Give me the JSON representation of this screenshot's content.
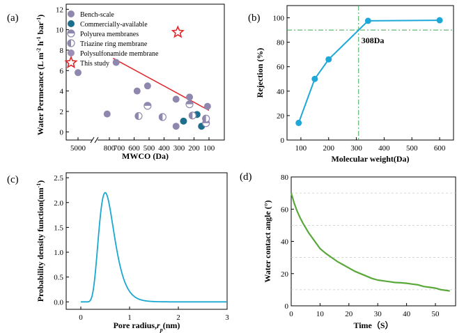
{
  "chart_data": [
    {
      "id": "a",
      "type": "scatter",
      "panel_label": "(a)",
      "xlabel": "MWCO  (Da)",
      "ylabel": "Water Permeance (L m⁻² h⁻¹ bar⁻¹)",
      "ylabel_parts": [
        "Water Permeance (L m",
        "-2",
        " h",
        "-1",
        " bar",
        "-1",
        ")"
      ],
      "x_axis": "reversed, broken between 5000 and 800",
      "xticks": [
        "5000",
        "800",
        "700",
        "600",
        "500",
        "400",
        "300",
        "200",
        "100"
      ],
      "ylim": [
        -0.8,
        12.5
      ],
      "yticks": [
        "0",
        "2",
        "4",
        "6",
        "8",
        "10",
        "12"
      ],
      "legend": [
        {
          "label": "Bench-scale",
          "marker": "circle",
          "color": "#8f87ad"
        },
        {
          "label": "Commercially-available",
          "marker": "circle",
          "color": "#1c6e8c"
        },
        {
          "label": "Polyurea membranes",
          "marker": "half-top",
          "color": "#8f87ad"
        },
        {
          "label": "Triazine ring membrane",
          "marker": "half-left",
          "color": "#8f87ad"
        },
        {
          "label": "Polysulfonamide membrane",
          "marker": "circle",
          "color": "#9b8fb5"
        },
        {
          "label": "This study",
          "marker": "star",
          "color": "#e0262a"
        }
      ],
      "series": [
        {
          "name": "Bench-scale",
          "points": [
            [
              5000,
              5.8
            ],
            [
              780,
              1.75
            ],
            [
              720,
              6.8
            ],
            [
              580,
              4.0
            ],
            [
              510,
              4.5
            ],
            [
              320,
              3.2
            ],
            [
              230,
              3.4
            ],
            [
              320,
              0.55
            ],
            [
              110,
              2.5
            ]
          ]
        },
        {
          "name": "Commercially-available",
          "points": [
            [
              270,
              1.05
            ],
            [
              180,
              1.7
            ],
            [
              150,
              0.55
            ]
          ]
        },
        {
          "name": "Polyurea membranes",
          "points": [
            [
              510,
              2.55
            ],
            [
              230,
              2.7
            ],
            [
              120,
              0.85
            ]
          ]
        },
        {
          "name": "Triazine ring membrane",
          "points": [
            [
              570,
              1.55
            ],
            [
              410,
              1.45
            ],
            [
              210,
              1.6
            ],
            [
              120,
              1.3
            ]
          ]
        },
        {
          "name": "This study",
          "points": [
            [
              308,
              9.75
            ]
          ]
        }
      ],
      "trendline": {
        "x": [
          740,
          100
        ],
        "y": [
          7.2,
          2.1
        ],
        "color": "#e0262a"
      }
    },
    {
      "id": "b",
      "type": "line",
      "panel_label": "(b)",
      "xlabel": "Molecular weight(Da)",
      "ylabel": "Rejection (%)",
      "x": [
        92,
        150,
        200,
        342,
        600
      ],
      "y": [
        14,
        50,
        66,
        97.5,
        98
      ],
      "xlim": [
        50,
        650
      ],
      "ylim": [
        0,
        110
      ],
      "xticks": [
        "100",
        "200",
        "300",
        "400",
        "500",
        "600"
      ],
      "yticks": [
        "0",
        "20",
        "40",
        "60",
        "80",
        "100"
      ],
      "ref_vline": 308,
      "ref_hline": 90,
      "annotation": "308Da",
      "color": "#1ea8d8",
      "ref_color": "#3aa655"
    },
    {
      "id": "c",
      "type": "line",
      "panel_label": "(c)",
      "xlabel_parts": [
        "Pore radius,",
        "r",
        "p",
        "(nm)"
      ],
      "xlabel": "Pore radius,rp(nm)",
      "ylabel": "Probability density function(nm⁻¹)",
      "ylabel_parts": [
        "Probability density function(nm",
        "-1",
        ")"
      ],
      "distribution": "lognormal",
      "mode_nm": 0.5,
      "peak_value": 2.2,
      "xlim": [
        -0.3,
        3
      ],
      "ylim": [
        -0.15,
        2.6
      ],
      "xticks": [
        "0",
        "1",
        "2",
        "3"
      ],
      "yticks": [
        "0.0",
        "0.5",
        "1.0",
        "1.5",
        "2.0",
        "2.5"
      ],
      "color": "#1aa7d0"
    },
    {
      "id": "d",
      "type": "line",
      "panel_label": "(d)",
      "xlabel": "Time（S）",
      "ylabel": "Water contact angle (°)",
      "x": [
        0,
        1,
        2,
        3,
        4,
        5,
        6,
        7,
        8,
        9,
        10,
        12,
        14,
        16,
        18,
        20,
        22,
        24,
        26,
        28,
        30,
        32,
        34,
        36,
        38,
        40,
        42,
        44,
        46,
        48,
        50,
        52,
        54,
        55
      ],
      "y": [
        70,
        64,
        59,
        55,
        51.5,
        48.5,
        45.5,
        43,
        40.5,
        38,
        35.5,
        32.5,
        30,
        27.5,
        25.5,
        23.5,
        21.5,
        20,
        18.5,
        17,
        16,
        15.5,
        15,
        14.5,
        14.3,
        14,
        13.5,
        13,
        12,
        11.5,
        11,
        10,
        9.5,
        9.2
      ],
      "xlim": [
        0,
        57
      ],
      "ylim": [
        0,
        80
      ],
      "xticks": [
        "0",
        "10",
        "20",
        "30",
        "40",
        "50"
      ],
      "yticks": [
        "0",
        "20",
        "40",
        "60",
        "80"
      ],
      "color": "#5aa83a"
    }
  ]
}
